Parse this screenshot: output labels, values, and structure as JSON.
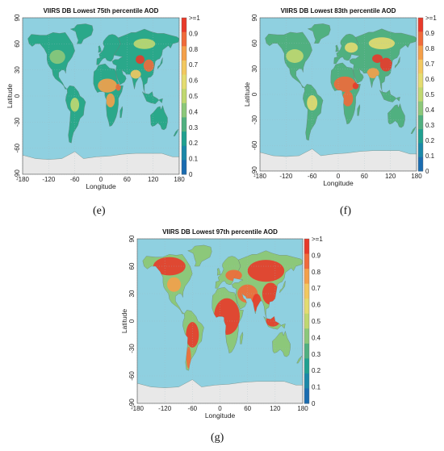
{
  "panels": [
    {
      "id": "e",
      "title": "VIIRS DB Lowest 75th percentile AOD",
      "letter": "(e)",
      "xlabel": "Longitude",
      "ylabel": "Latitude",
      "xticks": [
        "-180",
        "-120",
        "-60",
        "0",
        "60",
        "120",
        "180"
      ],
      "yticks": [
        "90",
        "60",
        "30",
        "0",
        "-30",
        "-60",
        "-90"
      ],
      "colorbar_labels": [
        ">=1",
        "0.9",
        "0.8",
        "0.7",
        "0.6",
        "0.5",
        "0.4",
        "0.3",
        "0.2",
        "0.1",
        "0"
      ],
      "level": "low"
    },
    {
      "id": "f",
      "title": "VIIRS DB Lowest 83th percentile AOD",
      "letter": "(f)",
      "xlabel": "Longitude",
      "ylabel": "Latitude",
      "xticks": [
        "-180",
        "-120",
        "-60",
        "0",
        "60",
        "120",
        "180"
      ],
      "yticks": [
        "90",
        "60",
        "30",
        "0",
        "-30",
        "-60",
        "-90"
      ],
      "colorbar_labels": [
        ">=1",
        "0.9",
        "0.8",
        "0.7",
        "0.6",
        "0.5",
        "0.4",
        "0.3",
        "0.2",
        "0.1",
        "0"
      ],
      "level": "mid"
    },
    {
      "id": "g",
      "title": "VIIRS DB Lowest 97th percentile AOD",
      "letter": "(g)",
      "xlabel": "Longitude",
      "ylabel": "Latitude",
      "xticks": [
        "-180",
        "-120",
        "-60",
        "0",
        "60",
        "120",
        "180"
      ],
      "yticks": [
        "90",
        "60",
        "30",
        "0",
        "-30",
        "-60",
        "-90"
      ],
      "colorbar_labels": [
        ">=1",
        "0.9",
        "0.8",
        "0.7",
        "0.6",
        "0.5",
        "0.4",
        "0.3",
        "0.2",
        "0.1",
        "0"
      ],
      "level": "high"
    }
  ],
  "colors": {
    "ocean": "#8fd0e0",
    "antarctica": "#e8e8e8",
    "low": "#2aa88a",
    "mid": "#c8d85a",
    "high": "#e84a3a",
    "colorbar": [
      "#e83a2a",
      "#f06a3a",
      "#f4a04a",
      "#f2c860",
      "#e4dc70",
      "#c0d870",
      "#8cc87a",
      "#50b080",
      "#20a090",
      "#1a88a8",
      "#1a6cb0"
    ]
  }
}
